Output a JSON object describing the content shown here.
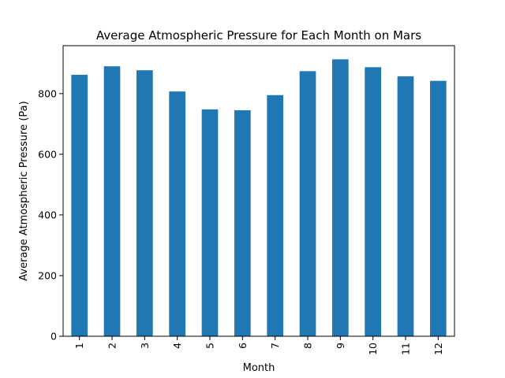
{
  "chart_data": {
    "type": "bar",
    "title": "Average Atmospheric Pressure for Each Month on Mars",
    "xlabel": "Month",
    "ylabel": "Average Atmospheric Pressure (Pa)",
    "categories": [
      "1",
      "2",
      "3",
      "4",
      "5",
      "6",
      "7",
      "8",
      "9",
      "10",
      "11",
      "12"
    ],
    "values": [
      862,
      890,
      877,
      807,
      748,
      745,
      795,
      874,
      913,
      887,
      857,
      842
    ],
    "ylim": [
      0,
      958
    ],
    "yticks": [
      0,
      200,
      400,
      600,
      800
    ],
    "ytick_labels": [
      "0",
      "200",
      "400",
      "600",
      "800"
    ],
    "bar_color": "#1f77b4",
    "grid": false,
    "legend": "none"
  }
}
